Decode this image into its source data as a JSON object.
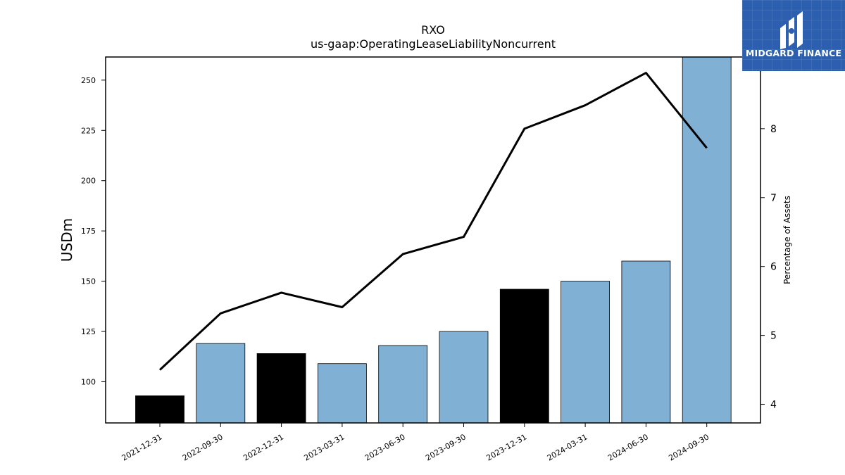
{
  "chart_data": {
    "type": "bar",
    "title": "RXO",
    "subtitle": "us-gaap:OperatingLeaseLiabilityNoncurrent",
    "xlabel": "",
    "ylabel": "USDm",
    "y2label": "Percentage of Assets",
    "categories": [
      "2021-12-31",
      "2022-09-30",
      "2022-12-31",
      "2023-03-31",
      "2023-06-30",
      "2023-09-30",
      "2023-12-31",
      "2024-03-31",
      "2024-06-30",
      "2024-09-30"
    ],
    "series": [
      {
        "axis": "left",
        "kind": "bar",
        "values": [
          93,
          119,
          114,
          109,
          118,
          125,
          146,
          150,
          160,
          262
        ],
        "colors": [
          "#000000",
          "#80b0d3",
          "#000000",
          "#80b0d3",
          "#80b0d3",
          "#80b0d3",
          "#000000",
          "#80b0d3",
          "#80b0d3",
          "#80b0d3"
        ]
      },
      {
        "axis": "right",
        "kind": "line",
        "color": "#000000",
        "values": [
          4.5,
          5.32,
          5.62,
          5.41,
          6.18,
          6.43,
          8.0,
          8.34,
          8.81,
          7.72
        ]
      }
    ],
    "ylim": [
      79.5,
      261.5
    ],
    "yticks": [
      100,
      125,
      150,
      175,
      200,
      225,
      250
    ],
    "y2lim": [
      3.73,
      9.04
    ],
    "y2ticks": [
      4,
      5,
      6,
      7,
      8
    ],
    "grid": false,
    "legend": "none"
  },
  "logo": {
    "text": "MIDGARD FINANCE",
    "color": "#2d5fb0"
  }
}
